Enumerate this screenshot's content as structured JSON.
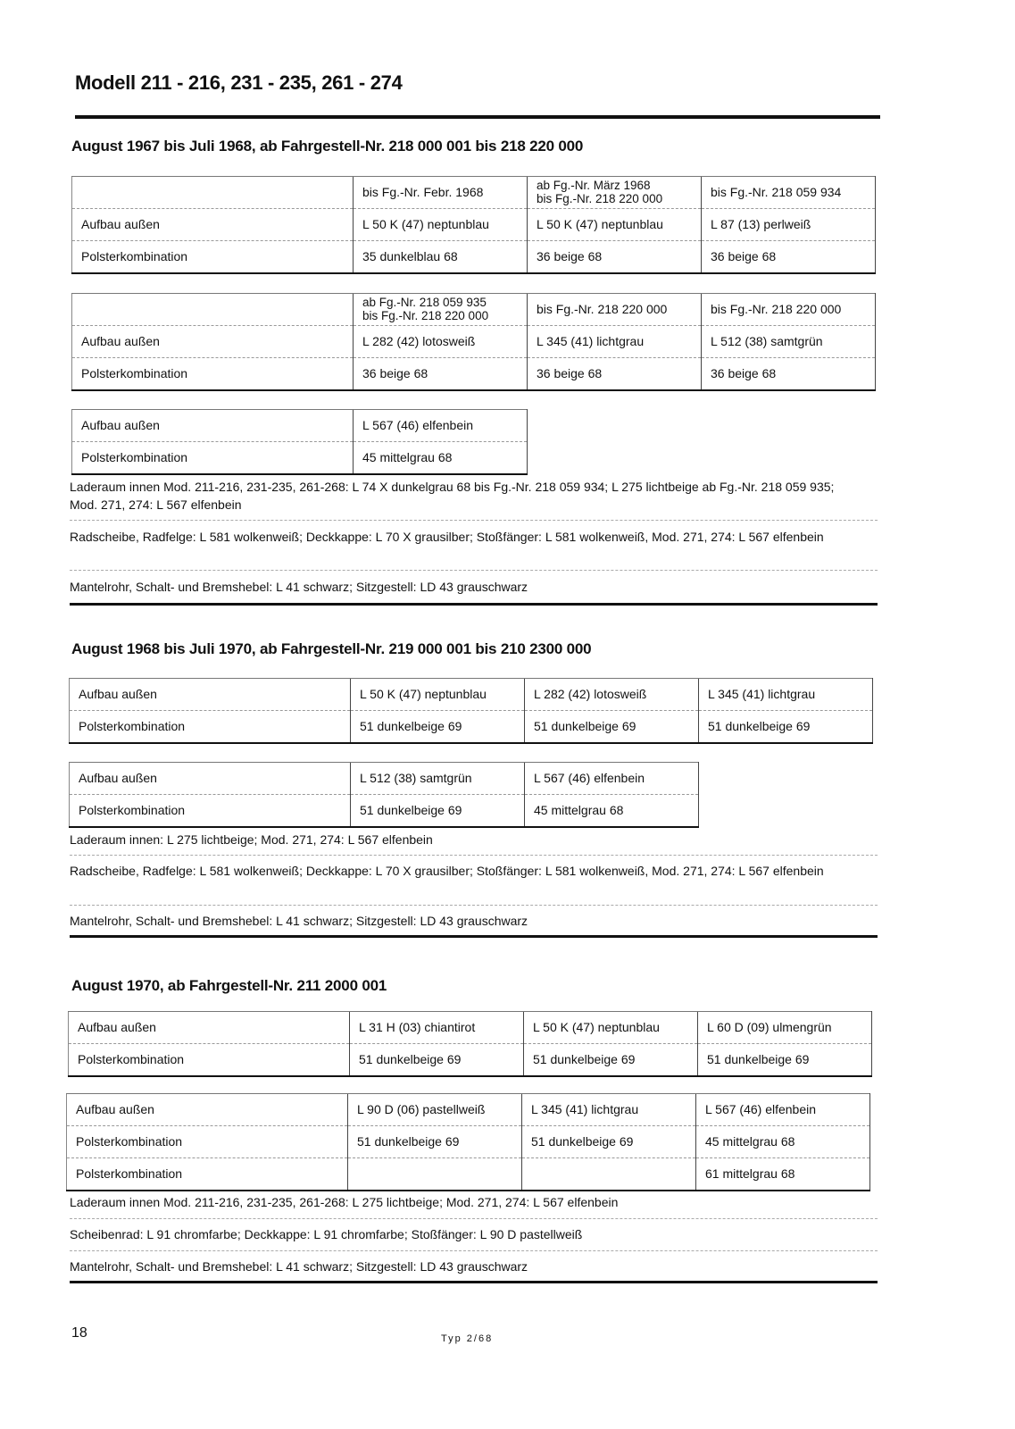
{
  "header": {
    "title": "Modell 211 - 216, 231 - 235, 261 - 274"
  },
  "sections": [
    {
      "title": "August 1967 bis Juli 1968, ab Fahrgestell-Nr. 218 000 001 bis 218 220 000",
      "tables": [
        {
          "rows": [
            [
              "",
              "bis Fg.-Nr. Febr. 1968",
              "ab Fg.-Nr. März 1968\nbis Fg.-Nr. 218 220 000",
              "bis Fg.-Nr. 218 059 934"
            ],
            [
              "Aufbau außen",
              "L 50 K (47) neptunblau",
              "L 50 K (47) neptunblau",
              "L 87 (13) perlweiß"
            ],
            [
              "Polsterkombination",
              "35 dunkelblau 68",
              "36 beige 68",
              "36 beige 68"
            ]
          ]
        },
        {
          "rows": [
            [
              "",
              "ab Fg.-Nr. 218 059 935\nbis Fg.-Nr. 218 220 000",
              "bis Fg.-Nr. 218 220 000",
              "bis Fg.-Nr. 218 220 000"
            ],
            [
              "Aufbau außen",
              "L 282 (42) lotosweiß",
              "L 345 (41) lichtgrau",
              "L 512 (38) samtgrün"
            ],
            [
              "Polsterkombination",
              "36 beige 68",
              "36 beige 68",
              "36 beige 68"
            ]
          ]
        },
        {
          "rows": [
            [
              "Aufbau außen",
              "L 567 (46) elfenbein"
            ],
            [
              "Polsterkombination",
              "45 mittelgrau 68"
            ]
          ]
        }
      ],
      "notes": [
        "Laderaum innen Mod. 211-216, 231-235, 261-268: L 74 X dunkelgrau 68 bis Fg.-Nr. 218 059 934; L 275 lichtbeige ab Fg.-Nr. 218 059 935; Mod. 271, 274: L 567 elfenbein",
        "Radscheibe, Radfelge: L 581 wolkenweiß; Deckkappe: L 70 X grausilber; Stoßfänger: L 581 wolkenweiß, Mod. 271, 274: L 567 elfenbein",
        "Mantelrohr, Schalt- und Bremshebel: L 41 schwarz; Sitzgestell: LD 43 grauschwarz"
      ]
    },
    {
      "title": "August 1968 bis Juli 1970, ab Fahrgestell-Nr. 219 000 001 bis 210 2300 000",
      "tables": [
        {
          "rows": [
            [
              "Aufbau außen",
              "L 50 K (47) neptunblau",
              "L 282 (42) lotosweiß",
              "L 345 (41) lichtgrau"
            ],
            [
              "Polsterkombination",
              "51 dunkelbeige 69",
              "51 dunkelbeige 69",
              "51 dunkelbeige 69"
            ]
          ]
        },
        {
          "rows": [
            [
              "Aufbau außen",
              "L 512 (38) samtgrün",
              "L 567 (46) elfenbein"
            ],
            [
              "Polsterkombination",
              "51 dunkelbeige 69",
              "45 mittelgrau 68"
            ]
          ]
        }
      ],
      "notes": [
        "Laderaum innen: L 275 lichtbeige; Mod. 271, 274: L 567 elfenbein",
        "Radscheibe, Radfelge: L 581 wolkenweiß; Deckkappe: L 70 X grausilber; Stoßfänger: L 581 wolkenweiß, Mod. 271, 274: L 567 elfenbein",
        "Mantelrohr, Schalt- und Bremshebel: L 41 schwarz; Sitzgestell: LD 43 grauschwarz"
      ]
    },
    {
      "title": "August 1970, ab Fahrgestell-Nr. 211 2000 001",
      "tables": [
        {
          "rows": [
            [
              "Aufbau außen",
              "L 31 H (03) chiantirot",
              "L 50 K (47) neptunblau",
              "L 60 D (09) ulmengrün"
            ],
            [
              "Polsterkombination",
              "51 dunkelbeige 69",
              "51 dunkelbeige 69",
              "51 dunkelbeige 69"
            ]
          ]
        },
        {
          "rows": [
            [
              "Aufbau außen",
              "L 90 D (06) pastellweiß",
              "L 345 (41) lichtgrau",
              "L 567 (46) elfenbein"
            ],
            [
              "Polsterkombination",
              "51 dunkelbeige 69",
              "51 dunkelbeige 69",
              "45 mittelgrau 68"
            ],
            [
              "Polsterkombination",
              "",
              "",
              "61 mittelgrau 68"
            ]
          ]
        }
      ],
      "notes": [
        "Laderaum innen Mod. 211-216, 231-235, 261-268: L 275 lichtbeige; Mod. 271, 274: L 567 elfenbein",
        "Scheibenrad: L 91 chromfarbe; Deckkappe: L 91 chromfarbe; Stoßfänger: L 90 D pastellweiß",
        "Mantelrohr, Schalt- und Bremshebel: L 41 schwarz; Sitzgestell: LD 43 grauschwarz"
      ]
    }
  ],
  "footer": {
    "page_number": "18",
    "type_code": "Typ 2/68"
  }
}
